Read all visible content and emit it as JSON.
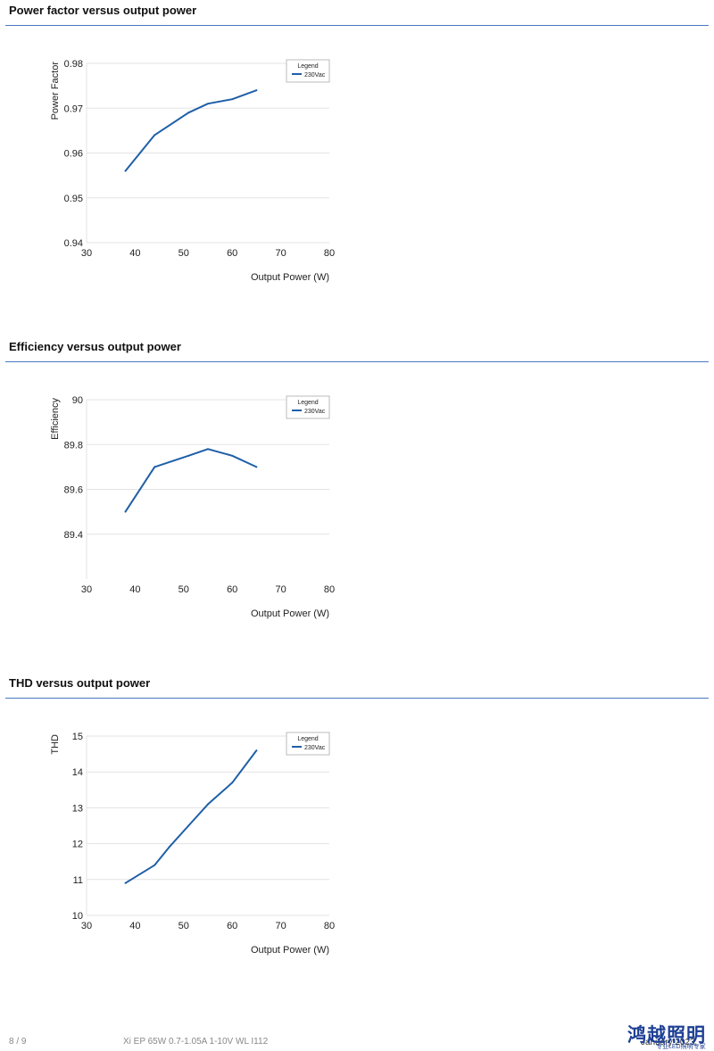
{
  "sections": [
    {
      "title": "Power factor versus output power"
    },
    {
      "title": "Efficiency versus output power"
    },
    {
      "title": "THD versus output power"
    }
  ],
  "footer": {
    "page": "8 / 9",
    "product": "Xi EP 65W 0.7-1.05A 1-10V WL I112",
    "date": "January 2023",
    "logo_text": "鸿越照明",
    "logo_sub": "专业LED照明专家"
  },
  "colors": {
    "series": "#1f5fa8",
    "grid": "#e3e3e3",
    "rule": "#4a78c2"
  },
  "chart_data": [
    {
      "type": "line",
      "title": "",
      "xlabel": "Output Power (W)",
      "ylabel": "Power Factor",
      "xlim": [
        30,
        80
      ],
      "ylim": [
        0.94,
        0.98
      ],
      "xticks": [
        "30",
        "40",
        "50",
        "60",
        "70",
        "80"
      ],
      "yticks": [
        "0.94",
        "0.95",
        "0.96",
        "0.97",
        "0.98"
      ],
      "legend": {
        "title": "Legend",
        "placement": "top-right"
      },
      "grid": true,
      "series": [
        {
          "name": "230Vac",
          "x": [
            38,
            44,
            51,
            55,
            60,
            65
          ],
          "y": [
            0.956,
            0.964,
            0.969,
            0.971,
            0.972,
            0.974
          ]
        }
      ]
    },
    {
      "type": "line",
      "title": "",
      "xlabel": "Output Power (W)",
      "ylabel": "Efficiency",
      "xlim": [
        30,
        80
      ],
      "ylim": [
        89.2,
        90
      ],
      "xticks": [
        "30",
        "40",
        "50",
        "60",
        "70",
        "80"
      ],
      "yticks": [
        "89.4",
        "89.6",
        "89.8",
        "90"
      ],
      "legend": {
        "title": "Legend",
        "placement": "top-right"
      },
      "grid": true,
      "series": [
        {
          "name": "230Vac",
          "x": [
            38,
            44,
            51,
            55,
            60,
            65
          ],
          "y": [
            89.5,
            89.7,
            89.75,
            89.78,
            89.75,
            89.7
          ]
        }
      ]
    },
    {
      "type": "line",
      "title": "",
      "xlabel": "Output Power (W)",
      "ylabel": "THD",
      "xlim": [
        30,
        80
      ],
      "ylim": [
        10,
        15
      ],
      "xticks": [
        "30",
        "40",
        "50",
        "60",
        "70",
        "80"
      ],
      "yticks": [
        "10",
        "11",
        "12",
        "13",
        "14",
        "15"
      ],
      "legend": {
        "title": "Legend",
        "placement": "top-right"
      },
      "grid": true,
      "series": [
        {
          "name": "230Vac",
          "x": [
            38,
            44,
            47,
            51,
            55,
            60,
            65
          ],
          "y": [
            10.9,
            11.4,
            11.9,
            12.5,
            13.1,
            13.7,
            14.6
          ]
        }
      ]
    }
  ]
}
